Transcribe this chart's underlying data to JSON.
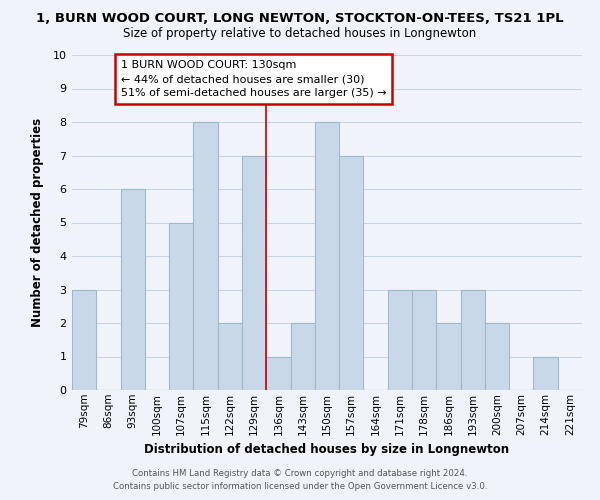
{
  "title": "1, BURN WOOD COURT, LONG NEWTON, STOCKTON-ON-TEES, TS21 1PL",
  "subtitle": "Size of property relative to detached houses in Longnewton",
  "xlabel": "Distribution of detached houses by size in Longnewton",
  "ylabel": "Number of detached properties",
  "bar_color": "#c8d8e8",
  "bar_edge_color": "#a0b8cc",
  "categories": [
    "79sqm",
    "86sqm",
    "93sqm",
    "100sqm",
    "107sqm",
    "115sqm",
    "122sqm",
    "129sqm",
    "136sqm",
    "143sqm",
    "150sqm",
    "157sqm",
    "164sqm",
    "171sqm",
    "178sqm",
    "186sqm",
    "193sqm",
    "200sqm",
    "207sqm",
    "214sqm",
    "221sqm"
  ],
  "values": [
    3,
    0,
    6,
    0,
    5,
    8,
    2,
    7,
    1,
    2,
    8,
    7,
    0,
    3,
    3,
    2,
    3,
    2,
    0,
    1,
    0
  ],
  "ylim": [
    0,
    10
  ],
  "yticks": [
    0,
    1,
    2,
    3,
    4,
    5,
    6,
    7,
    8,
    9,
    10
  ],
  "property_line_color": "#cc0000",
  "annotation_title": "1 BURN WOOD COURT: 130sqm",
  "annotation_line1": "← 44% of detached houses are smaller (30)",
  "annotation_line2": "51% of semi-detached houses are larger (35) →",
  "annotation_box_color": "#ffffff",
  "annotation_box_edge": "#cc0000",
  "footer1": "Contains HM Land Registry data © Crown copyright and database right 2024.",
  "footer2": "Contains public sector information licensed under the Open Government Licence v3.0.",
  "background_color": "#f0f4fa",
  "grid_color": "#c8d4e8"
}
